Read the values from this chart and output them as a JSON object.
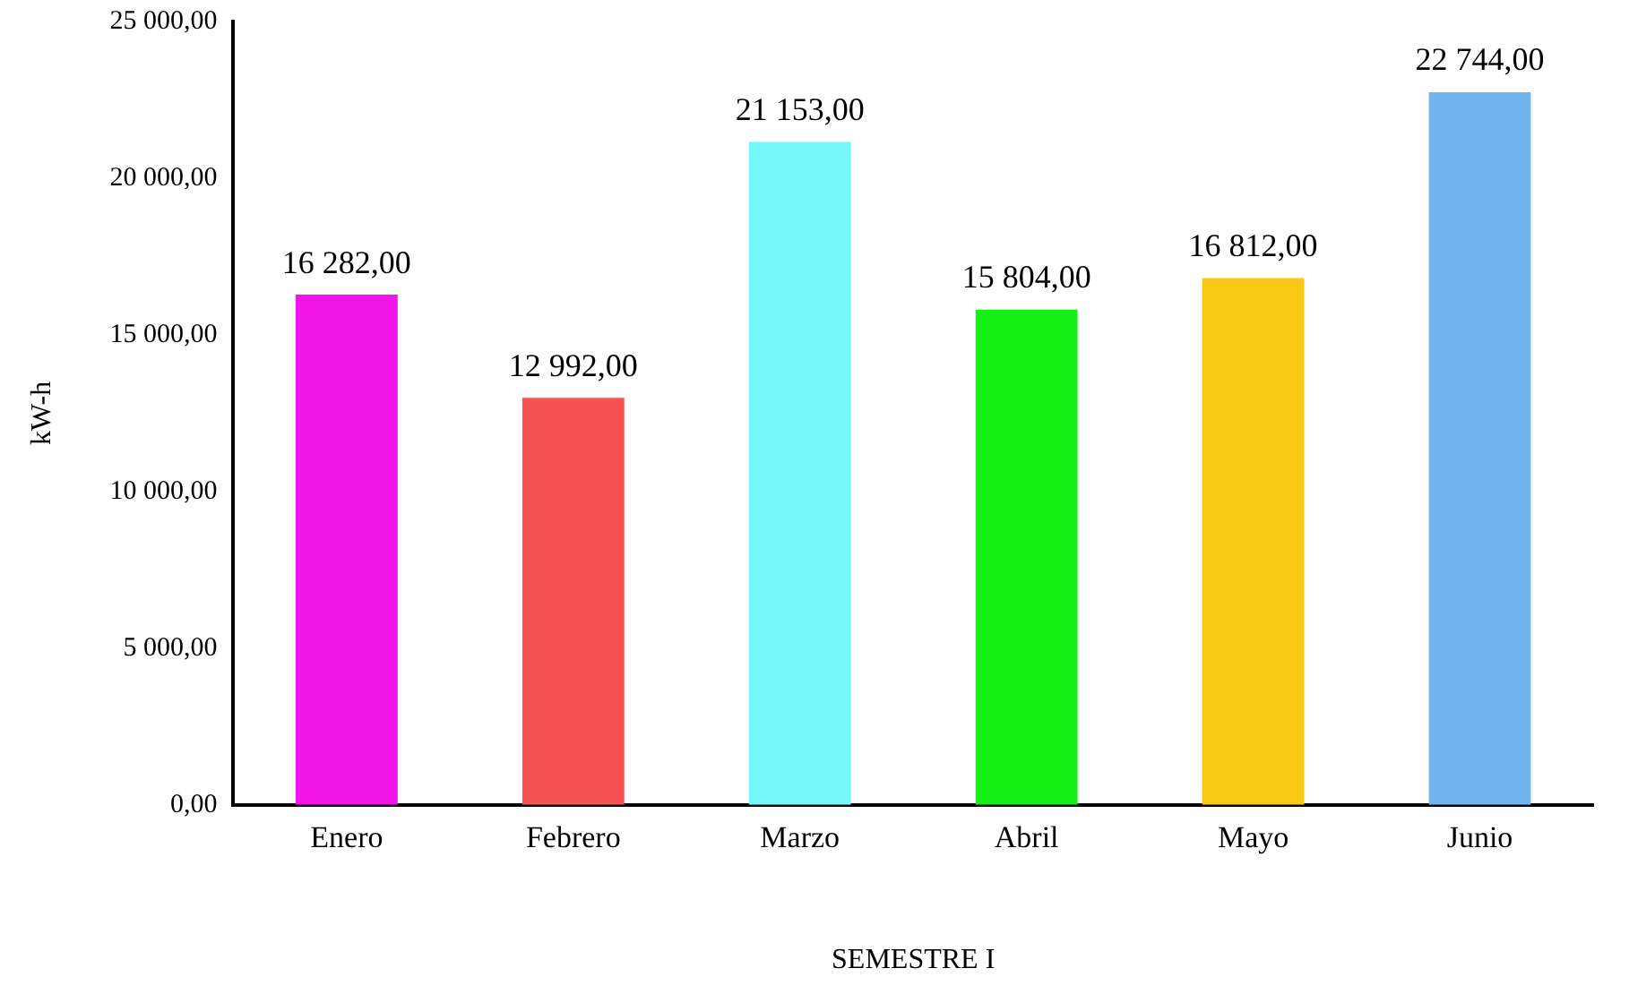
{
  "chart_data": {
    "type": "bar",
    "xlabel": "SEMESTRE I",
    "ylabel": "kW-h",
    "categories": [
      "Enero",
      "Febrero",
      "Marzo",
      "Abril",
      "Mayo",
      "Junio"
    ],
    "values": [
      16282,
      12992,
      21153,
      15804,
      16812,
      22744
    ],
    "colors": [
      "#f014e8",
      "#f85252",
      "#72f8f8",
      "#14f014",
      "#f8c814",
      "#70b4f0"
    ],
    "value_labels": [
      "16 282,00",
      "12 992,00",
      "21 153,00",
      "15 804,00",
      "16 812,00",
      "22 744,00"
    ],
    "ylim": [
      0,
      25000
    ],
    "yticks": [
      {
        "value": 0,
        "label": "0,00"
      },
      {
        "value": 5000,
        "label": "5 000,00"
      },
      {
        "value": 10000,
        "label": "10 000,00"
      },
      {
        "value": 15000,
        "label": "15 000,00"
      },
      {
        "value": 20000,
        "label": "20 000,00"
      },
      {
        "value": 25000,
        "label": "25 000,00"
      }
    ],
    "grid": false,
    "legend": false
  }
}
